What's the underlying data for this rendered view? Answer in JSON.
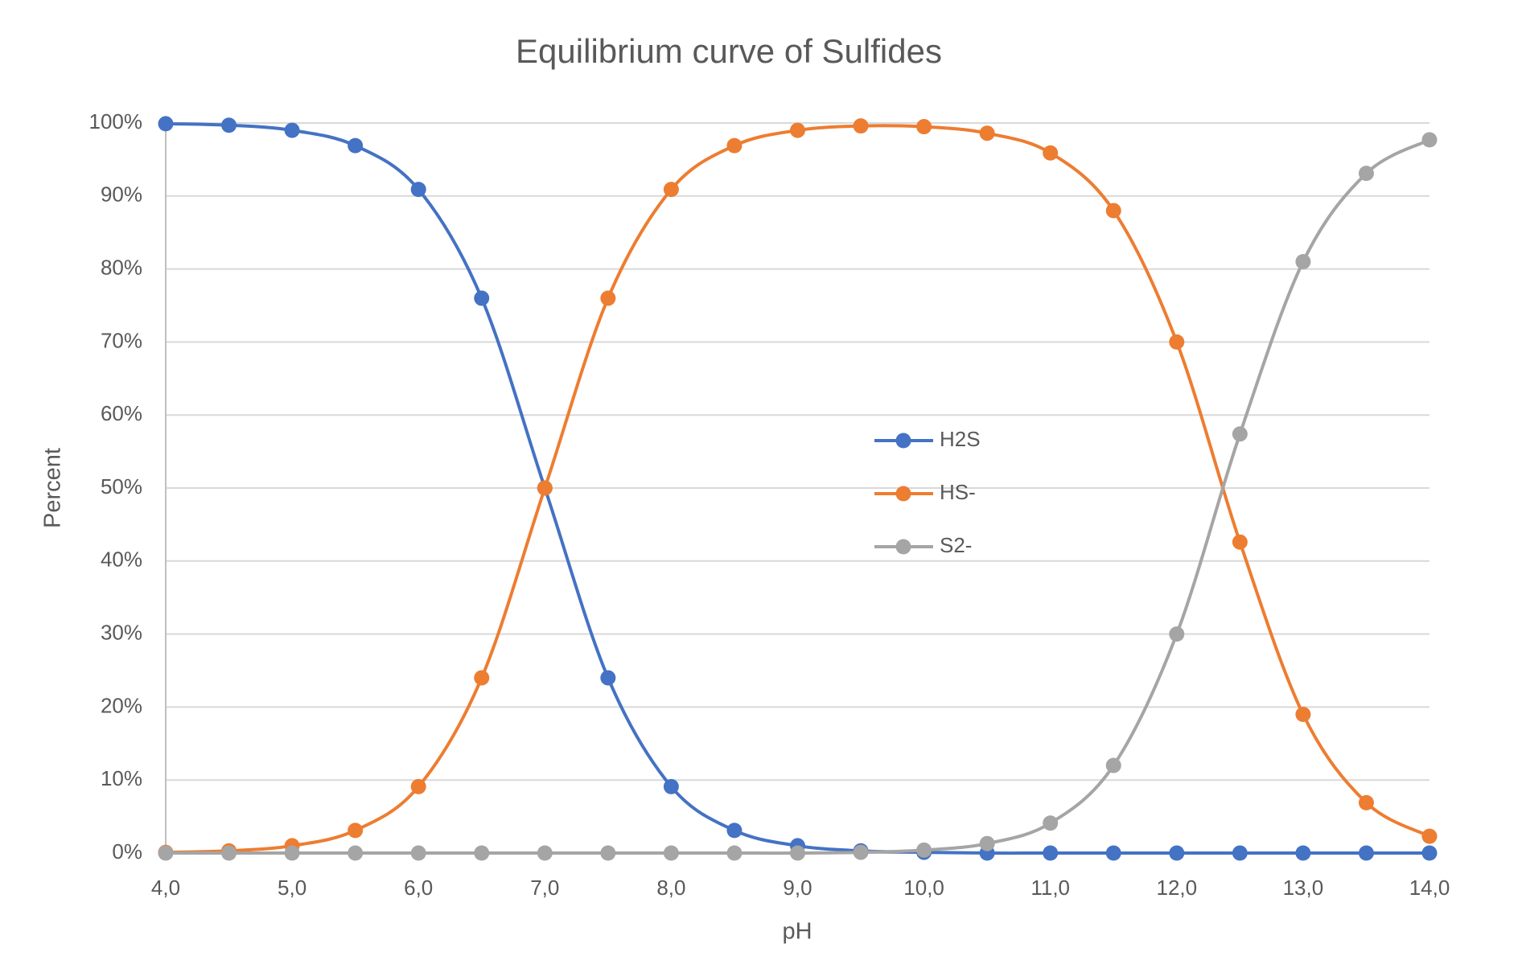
{
  "chart_data": {
    "type": "line",
    "title": "Equilibrium curve of Sulfides",
    "xlabel": "pH",
    "ylabel": "Percent",
    "x": [
      4.0,
      4.5,
      5.0,
      5.5,
      6.0,
      6.5,
      7.0,
      7.5,
      8.0,
      8.5,
      9.0,
      9.5,
      10.0,
      10.5,
      11.0,
      11.5,
      12.0,
      12.5,
      13.0,
      13.5,
      14.0
    ],
    "series": [
      {
        "name": "H2S",
        "color": "#4472c4",
        "values": [
          99.9,
          99.7,
          99,
          96.9,
          90.9,
          76,
          50,
          24,
          9.1,
          3.1,
          1,
          0.3,
          0.1,
          0,
          0,
          0,
          0,
          0,
          0,
          0,
          0
        ]
      },
      {
        "name": "HS-",
        "color": "#ed7d31",
        "values": [
          0.1,
          0.3,
          1,
          3.1,
          9.1,
          24,
          50,
          76,
          90.9,
          96.9,
          99,
          99.6,
          99.5,
          98.6,
          95.9,
          88,
          70,
          42.6,
          19,
          6.9,
          2.3
        ]
      },
      {
        "name": "S2-",
        "color": "#a5a5a5",
        "values": [
          0,
          0,
          0,
          0,
          0,
          0,
          0,
          0,
          0,
          0,
          0,
          0.1,
          0.4,
          1.3,
          4.1,
          12,
          30,
          57.4,
          81,
          93.1,
          97.7
        ]
      }
    ],
    "xlim": [
      4,
      14
    ],
    "xticks": [
      {
        "value": 4,
        "label": "4,0"
      },
      {
        "value": 5,
        "label": "5,0"
      },
      {
        "value": 6,
        "label": "6,0"
      },
      {
        "value": 7,
        "label": "7,0"
      },
      {
        "value": 8,
        "label": "8,0"
      },
      {
        "value": 9,
        "label": "9,0"
      },
      {
        "value": 10,
        "label": "10,0"
      },
      {
        "value": 11,
        "label": "11,0"
      },
      {
        "value": 12,
        "label": "12,0"
      },
      {
        "value": 13,
        "label": "13,0"
      },
      {
        "value": 14,
        "label": "14,0"
      }
    ],
    "ylim": [
      0,
      100
    ],
    "yticks": [
      {
        "value": 0,
        "label": "0%"
      },
      {
        "value": 10,
        "label": "10%"
      },
      {
        "value": 20,
        "label": "20%"
      },
      {
        "value": 30,
        "label": "30%"
      },
      {
        "value": 40,
        "label": "40%"
      },
      {
        "value": 50,
        "label": "50%"
      },
      {
        "value": 60,
        "label": "60%"
      },
      {
        "value": 70,
        "label": "70%"
      },
      {
        "value": 80,
        "label": "80%"
      },
      {
        "value": 90,
        "label": "90%"
      },
      {
        "value": 100,
        "label": "100%"
      }
    ],
    "grid": true,
    "legend": "center",
    "smooth": true
  }
}
